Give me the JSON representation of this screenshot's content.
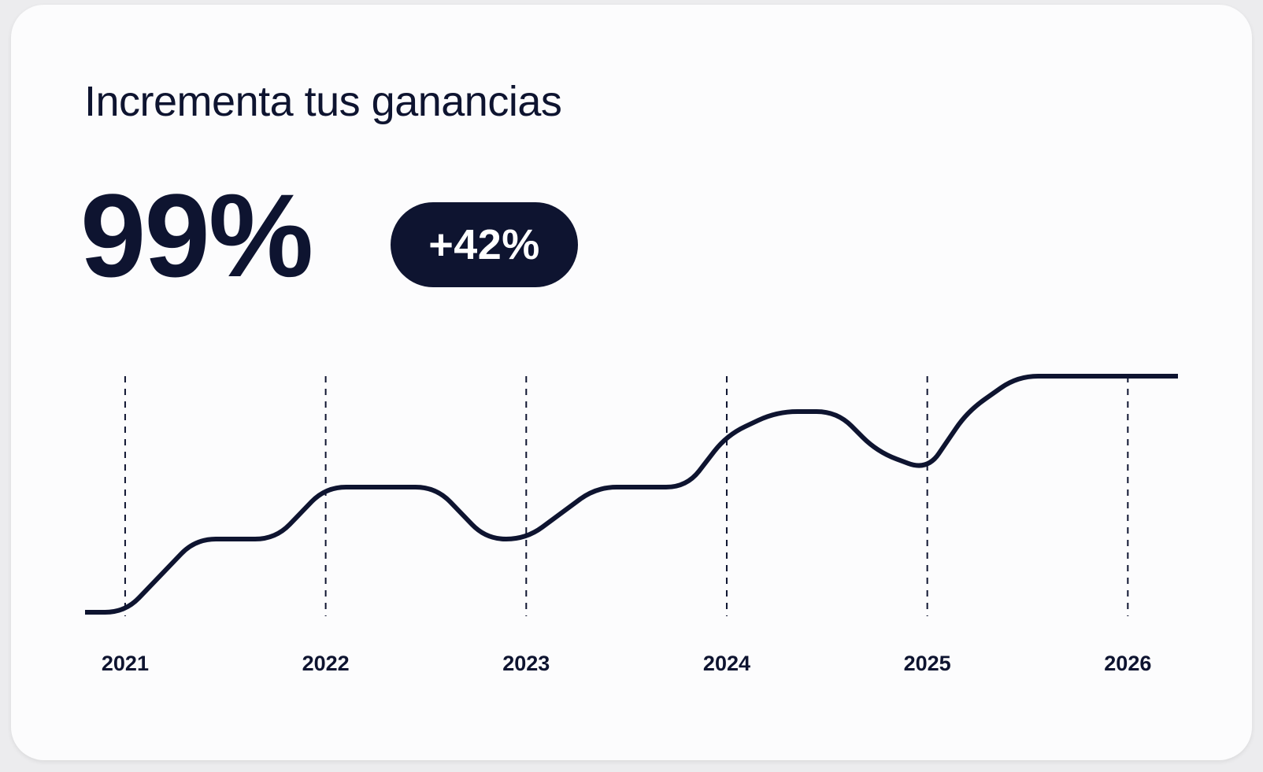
{
  "header": {
    "title": "Incrementa tus ganancias",
    "value": "99%",
    "badge": "+42%"
  },
  "colors": {
    "ink": "#0e1430",
    "card": "#fcfcfd",
    "background": "#ececee"
  },
  "chart_data": {
    "type": "line",
    "categories": [
      "2021",
      "2022",
      "2023",
      "2024",
      "2025",
      "2026"
    ],
    "x": [
      2020.8,
      2021.0,
      2021.35,
      2021.75,
      2022.0,
      2022.3,
      2022.55,
      2022.8,
      2023.0,
      2023.35,
      2023.8,
      2024.0,
      2024.25,
      2024.55,
      2024.75,
      2025.0,
      2025.2,
      2025.45,
      2026.0,
      2026.25
    ],
    "y": [
      0,
      0,
      31,
      31,
      53,
      53,
      53,
      31,
      31,
      53,
      53,
      75,
      85,
      85,
      68,
      60,
      85,
      100,
      100,
      100
    ],
    "xlim": [
      2020.8,
      2026.25
    ],
    "ylim": [
      0,
      100
    ],
    "grid": "vertical dashed lines at each year",
    "title": "",
    "xlabel": "",
    "ylabel": ""
  }
}
